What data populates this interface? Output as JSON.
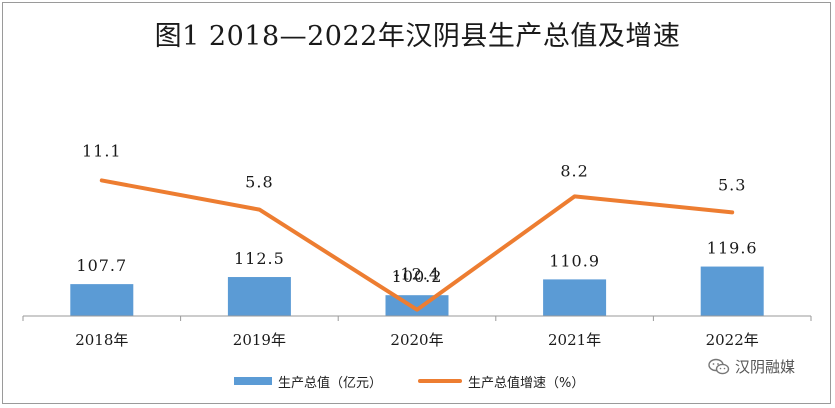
{
  "chart_data": {
    "type": "bar+line",
    "title": "图1 2018—2022年汉阴县生产总值及增速",
    "categories": [
      "2018年",
      "2019年",
      "2020年",
      "2021年",
      "2022年"
    ],
    "series": [
      {
        "name": "生产总值（亿元）",
        "type": "bar",
        "color": "#5B9BD5",
        "values": [
          107.7,
          112.5,
          100.2,
          110.9,
          119.6
        ]
      },
      {
        "name": "生产总值增速（%）",
        "type": "line",
        "color": "#ED7D31",
        "values": [
          11.1,
          5.8,
          -12.4,
          8.2,
          5.3
        ]
      }
    ],
    "bar_data_labels": [
      "107.7",
      "112.5",
      "100.2",
      "110.9",
      "119.6"
    ],
    "line_data_labels": [
      "11.1",
      "5.8",
      "-12.4",
      "8.2",
      "5.3"
    ],
    "legend_position": "bottom",
    "grid": false
  },
  "watermark": {
    "text": "汉阴融媒",
    "icon": "wechat-icon"
  }
}
